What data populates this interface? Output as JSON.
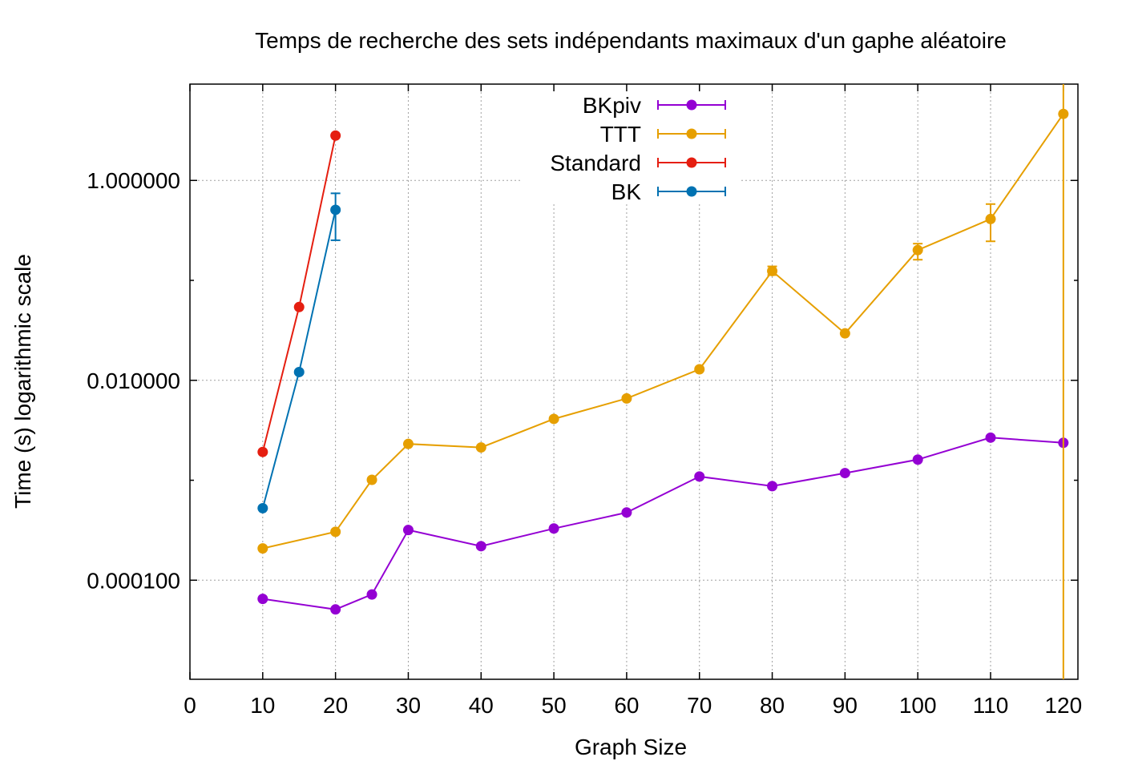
{
  "chart_data": {
    "type": "line",
    "title": "Temps de recherche des sets indépendants maximaux d'un gaphe aléatoire",
    "xlabel": "Graph Size",
    "ylabel": "Time (s) logarithmic scale",
    "xlim": [
      0,
      122
    ],
    "ylim": [
      1.02e-05,
      9.2
    ],
    "yscale": "log",
    "xticks": [
      0,
      10,
      20,
      30,
      40,
      50,
      60,
      70,
      80,
      90,
      100,
      110,
      120
    ],
    "yticks": [
      0.0001,
      0.01,
      1
    ],
    "ytick_labels": [
      "0.000100",
      "0.010000",
      "1.000000"
    ],
    "grid": true,
    "legend_position": "top-center",
    "series": [
      {
        "name": "BKpiv",
        "color": "#9400d3",
        "points": [
          {
            "x": 10,
            "y": 6.5e-05
          },
          {
            "x": 20,
            "y": 5.1e-05
          },
          {
            "x": 25,
            "y": 7.2e-05
          },
          {
            "x": 30,
            "y": 0.000318
          },
          {
            "x": 40,
            "y": 0.000219
          },
          {
            "x": 50,
            "y": 0.000329
          },
          {
            "x": 60,
            "y": 0.000476
          },
          {
            "x": 70,
            "y": 0.00109
          },
          {
            "x": 80,
            "y": 0.000873
          },
          {
            "x": 90,
            "y": 0.00118
          },
          {
            "x": 100,
            "y": 0.00161
          },
          {
            "x": 110,
            "y": 0.00267
          },
          {
            "x": 120,
            "y": 0.00237
          }
        ]
      },
      {
        "name": "TTT",
        "color": "#e69f00",
        "points": [
          {
            "x": 10,
            "y": 0.000208
          },
          {
            "x": 20,
            "y": 0.000305
          },
          {
            "x": 25,
            "y": 0.00101
          },
          {
            "x": 30,
            "y": 0.00231
          },
          {
            "x": 40,
            "y": 0.00213
          },
          {
            "x": 50,
            "y": 0.00411
          },
          {
            "x": 60,
            "y": 0.00659
          },
          {
            "x": 70,
            "y": 0.0129
          },
          {
            "x": 80,
            "y": 0.124,
            "err": [
              0.113,
              0.138
            ]
          },
          {
            "x": 90,
            "y": 0.0295
          },
          {
            "x": 100,
            "y": 0.201,
            "err": [
              0.161,
              0.233
            ]
          },
          {
            "x": 110,
            "y": 0.411,
            "err": [
              0.246,
              0.58
            ]
          },
          {
            "x": 120,
            "y": 4.63,
            "err": [
              1.02e-05,
              9.2
            ]
          }
        ]
      },
      {
        "name": "Standard",
        "color": "#e51e10",
        "points": [
          {
            "x": 10,
            "y": 0.00192
          },
          {
            "x": 15,
            "y": 0.0541
          },
          {
            "x": 20,
            "y": 2.81
          }
        ]
      },
      {
        "name": "BK",
        "color": "#0072b2",
        "points": [
          {
            "x": 10,
            "y": 0.000525
          },
          {
            "x": 15,
            "y": 0.0121
          },
          {
            "x": 20,
            "y": 0.508,
            "err": [
              0.252,
              0.743
            ]
          }
        ]
      }
    ]
  }
}
